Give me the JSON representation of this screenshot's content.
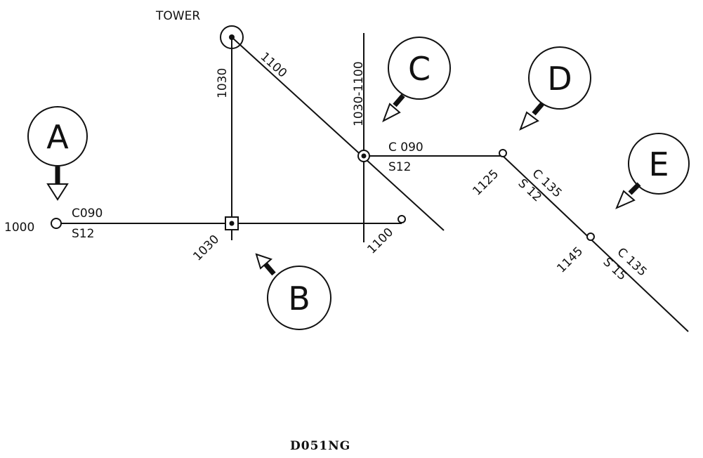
{
  "diagram": {
    "tower_label": "TOWER",
    "figure_id": "D051NG",
    "times": {
      "t1000": "1000",
      "t1030_left": "1030",
      "t1030_bottom": "1030",
      "t1100_radial": "1100",
      "t1030_1100": "1030-1100",
      "t1100_bottom": "1100",
      "t1125": "1125",
      "t1145": "1145"
    },
    "legs": {
      "leg1_course": "C090",
      "leg1_speed": "S12",
      "leg2_course": "C 090",
      "leg2_speed": "S12",
      "leg3_course": "C 135",
      "leg3_speed": "S 12",
      "leg4_course": "C 135",
      "leg4_speed": "S 15"
    },
    "markers": [
      "A",
      "B",
      "C",
      "D",
      "E"
    ]
  }
}
